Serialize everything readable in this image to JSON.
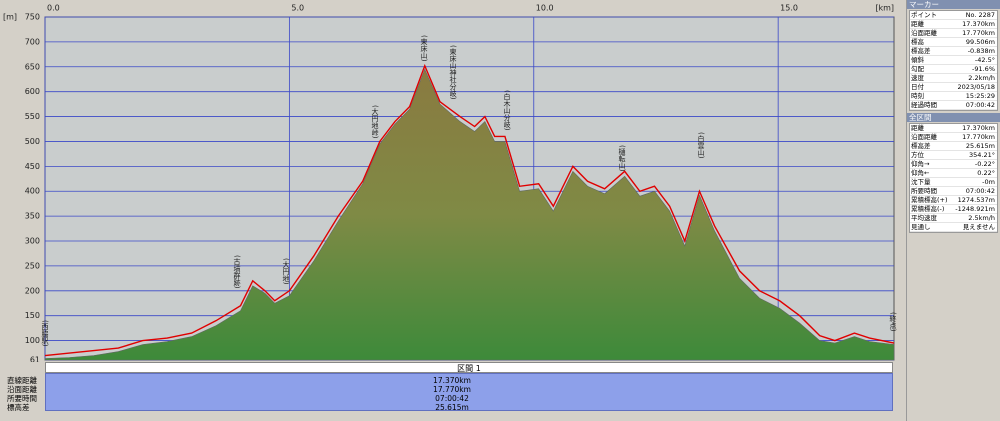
{
  "chart_data": {
    "type": "area",
    "y_unit": "[m]",
    "x_unit": "[km]",
    "x": [
      0,
      0.5,
      1,
      1.5,
      2,
      2.5,
      3,
      3.5,
      4,
      4.25,
      4.5,
      4.7,
      5,
      5.5,
      6,
      6.5,
      6.85,
      7.16,
      7.46,
      7.77,
      8.08,
      8.49,
      8.79,
      9.0,
      9.2,
      9.41,
      9.71,
      10.1,
      10.4,
      10.8,
      11.1,
      11.45,
      11.86,
      12.17,
      12.47,
      12.78,
      13.09,
      13.39,
      13.7,
      14.21,
      14.62,
      15.03,
      15.44,
      15.85,
      16.16,
      16.56,
      16.87,
      17.37
    ],
    "series": [
      {
        "type": "area",
        "color": "#6f8a3a",
        "values": [
          64,
          66,
          70,
          78,
          92,
          98,
          108,
          130,
          160,
          210,
          195,
          175,
          190,
          260,
          340,
          415,
          495,
          535,
          565,
          645,
          575,
          540,
          520,
          540,
          500,
          500,
          400,
          405,
          360,
          440,
          410,
          395,
          430,
          390,
          400,
          360,
          290,
          392,
          320,
          225,
          185,
          165,
          135,
          100,
          95,
          108,
          98,
          92
        ]
      },
      {
        "type": "line",
        "color": "#e00000",
        "values": [
          70,
          75,
          80,
          85,
          100,
          105,
          115,
          140,
          170,
          220,
          200,
          180,
          200,
          270,
          350,
          420,
          500,
          540,
          570,
          652,
          580,
          550,
          530,
          550,
          510,
          510,
          410,
          415,
          370,
          450,
          420,
          405,
          440,
          400,
          410,
          370,
          300,
          400,
          330,
          240,
          200,
          180,
          150,
          110,
          100,
          115,
          105,
          95
        ]
      }
    ],
    "xlim": [
      0,
      17.37
    ],
    "ylim": [
      61,
      750
    ],
    "xticks": [
      {
        "value": 0,
        "label": "0.0"
      },
      {
        "value": 5,
        "label": "5.0"
      },
      {
        "value": 10,
        "label": "10.0"
      },
      {
        "value": 15,
        "label": "15.0"
      }
    ],
    "yticks": [
      61,
      100,
      150,
      200,
      250,
      300,
      350,
      400,
      450,
      500,
      550,
      600,
      650,
      700,
      750
    ],
    "grid": true,
    "annotations": [
      "(西脇駅)",
      "(古墳群跡)",
      "(大円地)",
      "(大円地峠)",
      "(東床山)",
      "(東床山神社分岐)",
      "(白木山分岐)",
      "(樋転山)",
      "(白雲山)",
      "(終点)"
    ]
  },
  "section": {
    "title": "区間 1",
    "rows": [
      [
        "直線距離",
        "17.370km"
      ],
      [
        "沿面距離",
        "17.770km"
      ],
      [
        "所要時間",
        "07:00:42"
      ],
      [
        "標高差",
        "25.615m"
      ]
    ]
  },
  "marker": {
    "title": "マーカー",
    "rows": [
      [
        "ポイント",
        "No. 2287"
      ],
      [
        "距離",
        "17.370km"
      ],
      [
        "沿面距離",
        "17.770km"
      ],
      [
        "標高",
        "99.506m"
      ],
      [
        "標高差",
        "-0.838m"
      ],
      [
        "傾斜",
        "-42.5°"
      ],
      [
        "勾配",
        "-91.6%"
      ],
      [
        "速度",
        "2.2km/h"
      ],
      [
        "日付",
        "2023/05/18"
      ],
      [
        "時刻",
        "15:25:29"
      ],
      [
        "経過時間",
        "07:00:42"
      ]
    ]
  },
  "total": {
    "title": "全区間",
    "rows": [
      [
        "距離",
        "17.370km"
      ],
      [
        "沿面距離",
        "17.770km"
      ],
      [
        "標高差",
        "25.615m"
      ],
      [
        "方位",
        "354.21°"
      ],
      [
        "仰角→",
        "-0.22°"
      ],
      [
        "仰角←",
        "0.22°"
      ],
      [
        "沈下量",
        "-0m"
      ],
      [
        "所要時間",
        "07:00:42"
      ],
      [
        "累積標高(+)",
        "1274.537m"
      ],
      [
        "累積標高(-)",
        "-1248.921m"
      ],
      [
        "平均速度",
        "2.5km/h"
      ],
      [
        "見通し",
        "見えません"
      ]
    ]
  }
}
